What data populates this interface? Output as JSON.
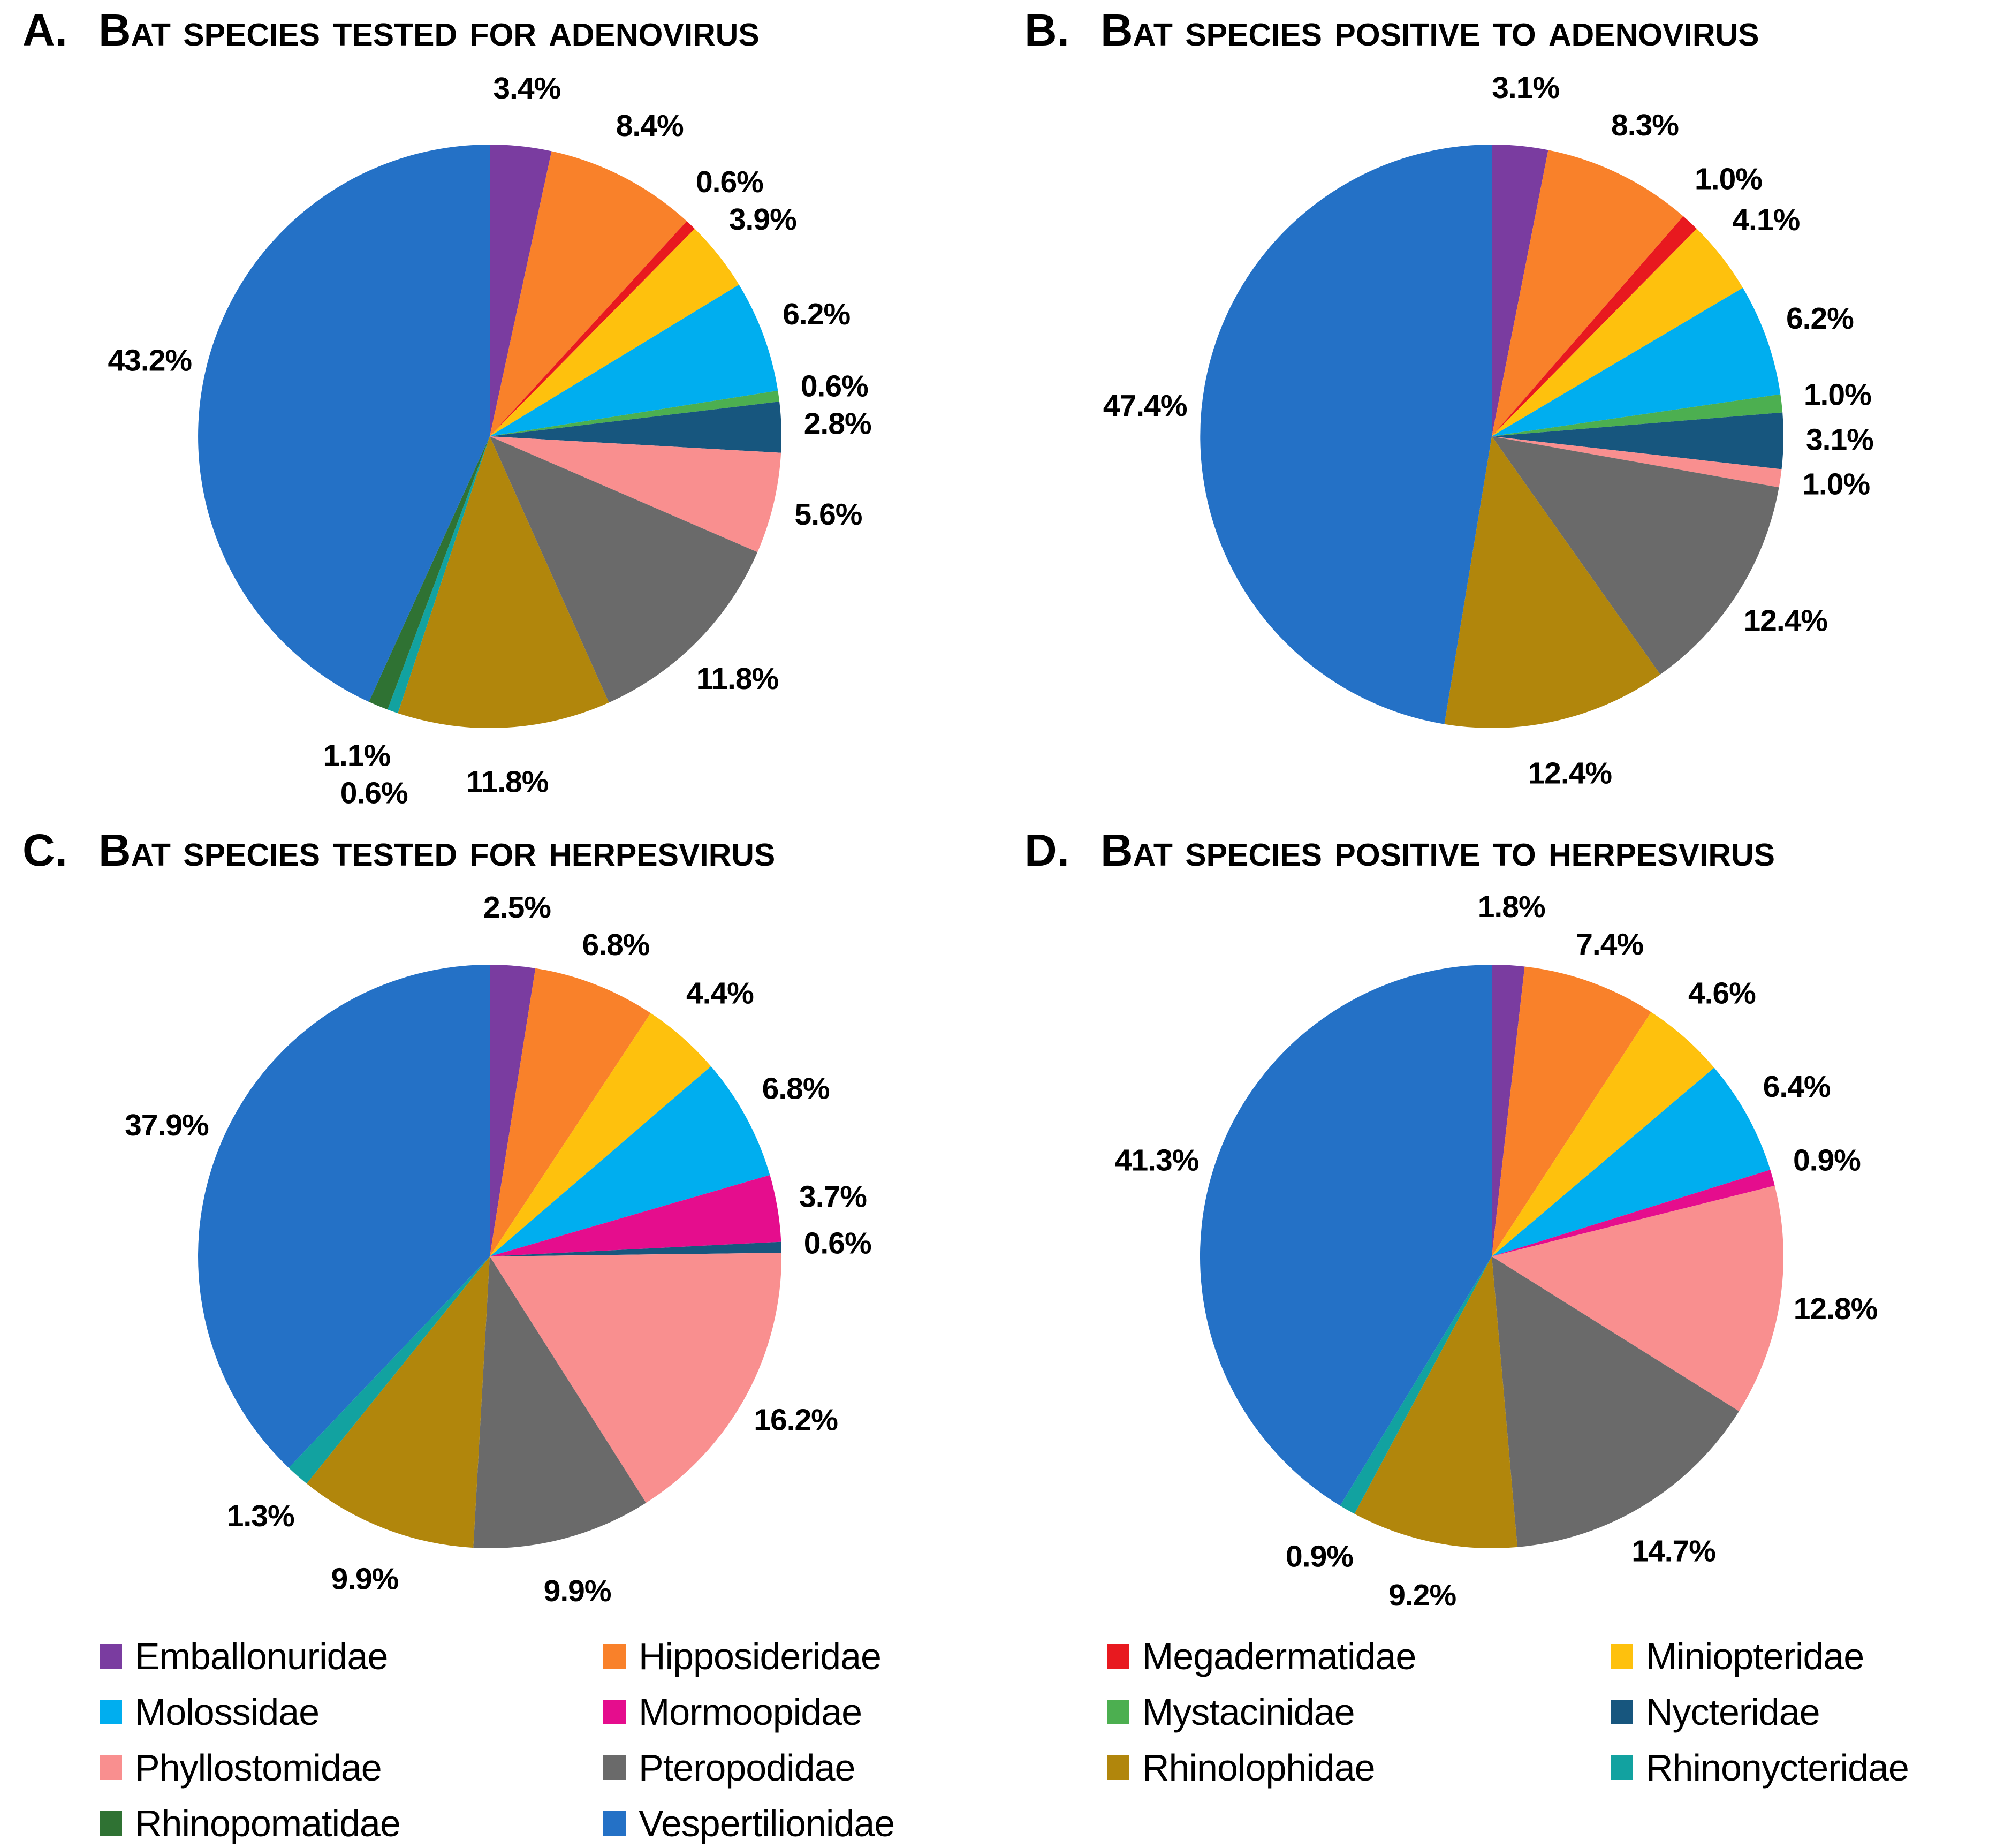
{
  "chart_data": {
    "type": "pie",
    "layout": "2x2-panels",
    "legend_position": "bottom",
    "slice_order": "alphabetical-clockwise-from-top",
    "value_format": "percent-one-decimal",
    "families": [
      {
        "name": "Emballonuridae",
        "color": "#7A3CA0"
      },
      {
        "name": "Hipposideridae",
        "color": "#F9812A"
      },
      {
        "name": "Megadermatidae",
        "color": "#E8191F"
      },
      {
        "name": "Miniopteridae",
        "color": "#FEC10D"
      },
      {
        "name": "Molossidae",
        "color": "#00AEEF"
      },
      {
        "name": "Mormoopidae",
        "color": "#E50D8D"
      },
      {
        "name": "Mystacinidae",
        "color": "#4CAF50"
      },
      {
        "name": "Nycteridae",
        "color": "#17567E"
      },
      {
        "name": "Phyllostomidae",
        "color": "#F98F8F"
      },
      {
        "name": "Pteropodidae",
        "color": "#6A6A6A"
      },
      {
        "name": "Rhinolophidae",
        "color": "#B1860C"
      },
      {
        "name": "Rhinonycteridae",
        "color": "#12A2A0"
      },
      {
        "name": "Rhinopomatidae",
        "color": "#2F7233"
      },
      {
        "name": "Vespertilionidae",
        "color": "#2471C6"
      }
    ],
    "charts": [
      {
        "letter": "A.",
        "title": "Bat species tested for adenovirus",
        "slices": [
          {
            "family": "Emballonuridae",
            "value": 3.4
          },
          {
            "family": "Hipposideridae",
            "value": 8.4
          },
          {
            "family": "Megadermatidae",
            "value": 0.6
          },
          {
            "family": "Miniopteridae",
            "value": 3.9
          },
          {
            "family": "Molossidae",
            "value": 6.2
          },
          {
            "family": "Mystacinidae",
            "value": 0.6
          },
          {
            "family": "Nycteridae",
            "value": 2.8
          },
          {
            "family": "Phyllostomidae",
            "value": 5.6
          },
          {
            "family": "Pteropodidae",
            "value": 11.8
          },
          {
            "family": "Rhinolophidae",
            "value": 11.8
          },
          {
            "family": "Rhinonycteridae",
            "value": 0.6
          },
          {
            "family": "Rhinopomatidae",
            "value": 1.1
          },
          {
            "family": "Vespertilionidae",
            "value": 43.2
          }
        ]
      },
      {
        "letter": "B.",
        "title": "Bat species positive to adenovirus",
        "slices": [
          {
            "family": "Emballonuridae",
            "value": 3.1
          },
          {
            "family": "Hipposideridae",
            "value": 8.3
          },
          {
            "family": "Megadermatidae",
            "value": 1.0
          },
          {
            "family": "Miniopteridae",
            "value": 4.1
          },
          {
            "family": "Molossidae",
            "value": 6.2
          },
          {
            "family": "Mystacinidae",
            "value": 1.0
          },
          {
            "family": "Nycteridae",
            "value": 3.1
          },
          {
            "family": "Phyllostomidae",
            "value": 1.0
          },
          {
            "family": "Pteropodidae",
            "value": 12.4
          },
          {
            "family": "Rhinolophidae",
            "value": 12.4
          },
          {
            "family": "Vespertilionidae",
            "value": 47.4
          }
        ]
      },
      {
        "letter": "C.",
        "title": "Bat species tested for herpesvirus",
        "slices": [
          {
            "family": "Emballonuridae",
            "value": 2.5
          },
          {
            "family": "Hipposideridae",
            "value": 6.8
          },
          {
            "family": "Miniopteridae",
            "value": 4.4
          },
          {
            "family": "Molossidae",
            "value": 6.8
          },
          {
            "family": "Mormoopidae",
            "value": 3.7
          },
          {
            "family": "Nycteridae",
            "value": 0.6
          },
          {
            "family": "Phyllostomidae",
            "value": 16.2
          },
          {
            "family": "Pteropodidae",
            "value": 9.9
          },
          {
            "family": "Rhinolophidae",
            "value": 9.9
          },
          {
            "family": "Rhinonycteridae",
            "value": 1.3
          },
          {
            "family": "Vespertilionidae",
            "value": 37.9
          }
        ]
      },
      {
        "letter": "D.",
        "title": "Bat species positive to herpesvirus",
        "slices": [
          {
            "family": "Emballonuridae",
            "value": 1.8
          },
          {
            "family": "Hipposideridae",
            "value": 7.4
          },
          {
            "family": "Miniopteridae",
            "value": 4.6
          },
          {
            "family": "Molossidae",
            "value": 6.4
          },
          {
            "family": "Mormoopidae",
            "value": 0.9
          },
          {
            "family": "Phyllostomidae",
            "value": 12.8
          },
          {
            "family": "Pteropodidae",
            "value": 14.7
          },
          {
            "family": "Rhinolophidae",
            "value": 9.2
          },
          {
            "family": "Rhinonycteridae",
            "value": 0.9
          },
          {
            "family": "Vespertilionidae",
            "value": 41.3
          }
        ]
      }
    ]
  }
}
